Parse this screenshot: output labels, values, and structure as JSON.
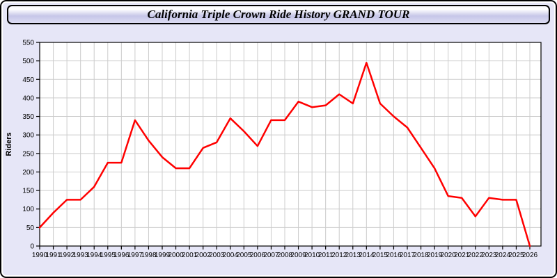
{
  "chart_data": {
    "type": "line",
    "title": "California Triple Crown Ride History GRAND TOUR",
    "ylabel": "Riders",
    "xlabel": "",
    "x": [
      1990,
      1991,
      1992,
      1993,
      1994,
      1995,
      1996,
      1997,
      1998,
      1999,
      2000,
      2001,
      2002,
      2003,
      2004,
      2005,
      2006,
      2007,
      2008,
      2009,
      2010,
      2011,
      2012,
      2013,
      2014,
      2015,
      2016,
      2017,
      2018,
      2019,
      2020,
      2021,
      2022,
      2023,
      2024,
      2025,
      2026
    ],
    "series": [
      {
        "name": "Riders",
        "color": "#ff0000",
        "values": [
          50,
          90,
          125,
          125,
          160,
          225,
          225,
          340,
          285,
          240,
          210,
          210,
          265,
          280,
          345,
          310,
          270,
          340,
          340,
          390,
          375,
          380,
          410,
          385,
          495,
          385,
          350,
          320,
          265,
          210,
          135,
          130,
          80,
          130,
          125,
          125,
          0
        ]
      }
    ],
    "ylim": [
      0,
      550
    ],
    "ytick_step": 50,
    "grid": true,
    "legend": "none",
    "colors": {
      "line": "#ff0000",
      "grid": "#cccccc",
      "plot_background": "#ffffff",
      "page_background": "#e6e6f7",
      "axis": "#000000"
    }
  }
}
